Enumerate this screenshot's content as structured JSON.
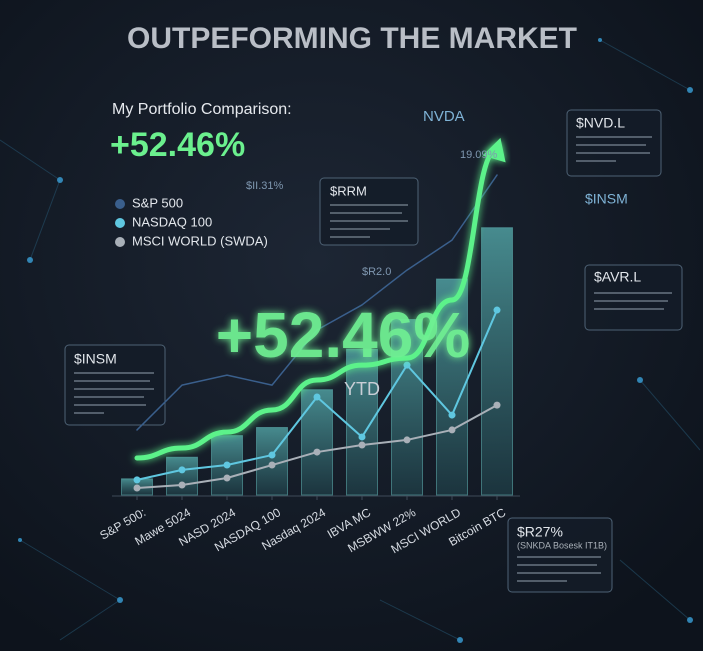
{
  "chart_data": {
    "type": "bar",
    "title": "OUTPEFORMING THE MARKET",
    "headline": "+52.46%",
    "big_value": "+52.46%",
    "big_value_note": "YTD",
    "categories": [
      "S&P 500:",
      "Mawe 5024",
      "NASD 2024",
      "NASDAQ 100",
      "Nasdaq 2024",
      "IBVA MC",
      "MSBWW 22%",
      "MSCI WORLD",
      "Bitcoin BTC"
    ],
    "values": [
      6,
      14,
      22,
      25,
      39,
      54,
      65,
      80,
      99
    ],
    "color": "#3e7f84",
    "ylim": [
      0,
      130
    ],
    "series": [
      {
        "name": "My Portfolio Comparison:",
        "color": "#5cf28a",
        "values": [
          13.7,
          17.4,
          23.3,
          31.5,
          42.6,
          48.1,
          50.7,
          72.2,
          128
        ]
      },
      {
        "name": "S&P 500",
        "color": "#3a5f8c",
        "values": [
          24.1,
          40.7,
          44.4,
          40.7,
          61.1,
          70.4,
          83.3,
          94.4,
          118.5
        ]
      },
      {
        "name": "NASDAQ 100",
        "color": "#5fc7e0",
        "values": [
          5.6,
          9.3,
          11.1,
          14.8,
          36.3,
          21.5,
          48.1,
          29.6,
          68.5
        ]
      },
      {
        "name": "MSCI WORLD (SWDA)",
        "color": "#a9b0b8",
        "values": [
          2.6,
          3.7,
          6.3,
          11.1,
          15.9,
          18.5,
          20.4,
          24.1,
          33.3
        ]
      }
    ],
    "annotations": [
      "NVDA",
      "19.09%",
      "$II.31%",
      "$RRM",
      "$R2.0",
      "$NVD.L",
      "$INSM",
      "$AVR.L",
      "$INSM",
      "$R27%",
      "(SNKDA Bosesk IT1B)"
    ]
  }
}
